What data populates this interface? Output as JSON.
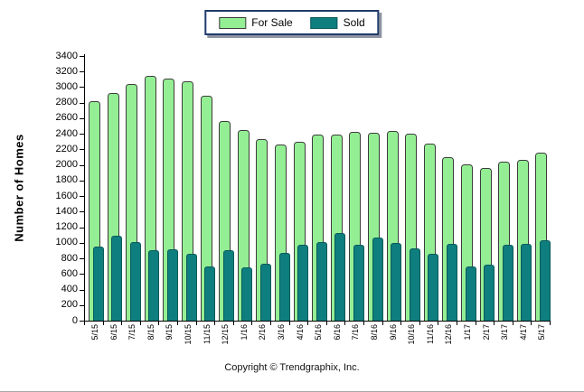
{
  "legend": {
    "items": [
      {
        "label": "For Sale"
      },
      {
        "label": "Sold"
      }
    ]
  },
  "footer": {
    "copyright": "Copyright © Trendgraphix, Inc."
  },
  "chart_data": {
    "type": "bar",
    "title": "",
    "ylabel": "Number of Homes",
    "xlabel": "",
    "ylim": [
      0,
      3400
    ],
    "ytick_step": 200,
    "grid": false,
    "legend_position": "top-center",
    "bar_style": "overlapped-rounded",
    "categories": [
      "5/15",
      "6/15",
      "7/15",
      "8/15",
      "9/15",
      "10/15",
      "11/15",
      "12/15",
      "1/16",
      "2/16",
      "3/16",
      "4/16",
      "5/16",
      "6/16",
      "7/16",
      "8/16",
      "9/16",
      "10/16",
      "11/16",
      "12/16",
      "1/17",
      "2/17",
      "3/17",
      "4/17",
      "5/17"
    ],
    "series": [
      {
        "name": "For Sale",
        "color": "#94ef94",
        "border_color": "#3c3c3c",
        "values": [
          2820,
          2930,
          3040,
          3140,
          3110,
          3080,
          2890,
          2570,
          2450,
          2330,
          2260,
          2300,
          2390,
          2390,
          2430,
          2410,
          2440,
          2400,
          2280,
          2100,
          2010,
          1960,
          2040,
          2060,
          2160
        ]
      },
      {
        "name": "Sold",
        "color": "#0e7e7e",
        "border_color": "#0a5a5a",
        "values": [
          950,
          1090,
          1010,
          900,
          920,
          860,
          700,
          910,
          690,
          730,
          870,
          970,
          1010,
          1130,
          980,
          1070,
          1000,
          930,
          860,
          990,
          700,
          720,
          970,
          990,
          1030
        ]
      }
    ]
  }
}
